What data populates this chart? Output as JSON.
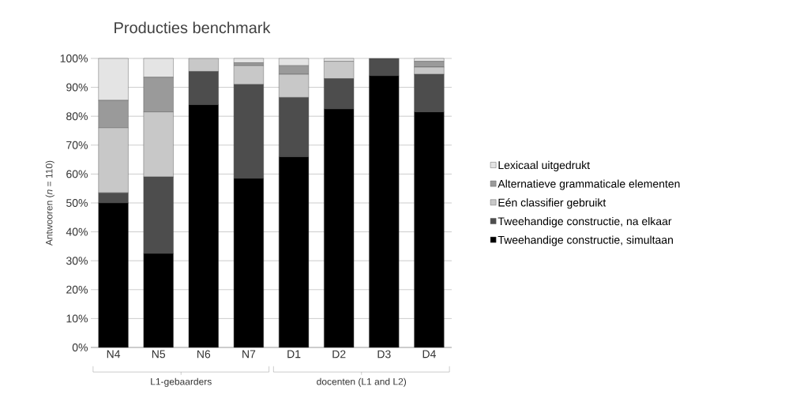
{
  "chart_data": {
    "type": "bar",
    "stacked": true,
    "title": "Producties benchmark",
    "ylabel": "Antwooren (*n* = 110)",
    "categories": [
      "N4",
      "N5",
      "N6",
      "N7",
      "D1",
      "D2",
      "D3",
      "D4"
    ],
    "series": [
      {
        "name": "Tweehandige constructie, simultaan",
        "color": "#000000",
        "values": [
          50,
          32.5,
          84,
          58.5,
          66,
          82.5,
          94,
          81.5
        ]
      },
      {
        "name": "Tweehandige constructie, na elkaar",
        "color": "#4d4d4d",
        "values": [
          3.5,
          26.5,
          11.5,
          32.5,
          20.5,
          10.5,
          6,
          13
        ]
      },
      {
        "name": "Eén classifier gebruikt",
        "color": "#c8c8c8",
        "values": [
          22.5,
          22.5,
          4.5,
          6.5,
          8,
          6,
          0,
          2.5
        ]
      },
      {
        "name": "Alternatieve grammaticale elementen",
        "color": "#9a9a9a",
        "values": [
          9.5,
          12,
          0,
          1,
          3,
          0,
          0,
          2
        ]
      },
      {
        "name": "Lexicaal uitgedrukt",
        "color": "#e4e4e4",
        "values": [
          14.5,
          6.5,
          0,
          1.5,
          2.5,
          1,
          0,
          1
        ]
      }
    ],
    "ylim": [
      0,
      100
    ],
    "yticks": [
      {
        "value": 0,
        "label": "0%"
      },
      {
        "value": 10,
        "label": "10%"
      },
      {
        "value": 20,
        "label": "20%"
      },
      {
        "value": 30,
        "label": "30%"
      },
      {
        "value": 40,
        "label": "40%"
      },
      {
        "value": 50,
        "label": "50%"
      },
      {
        "value": 60,
        "label": "60%"
      },
      {
        "value": 70,
        "label": "70%"
      },
      {
        "value": 80,
        "label": "80%"
      },
      {
        "value": 90,
        "label": "90%"
      },
      {
        "value": 100,
        "label": "100%"
      }
    ],
    "grid": "y",
    "legend": "right",
    "annotations": [
      "L1-gebaarders",
      "docenten (L1 and L2)"
    ]
  }
}
